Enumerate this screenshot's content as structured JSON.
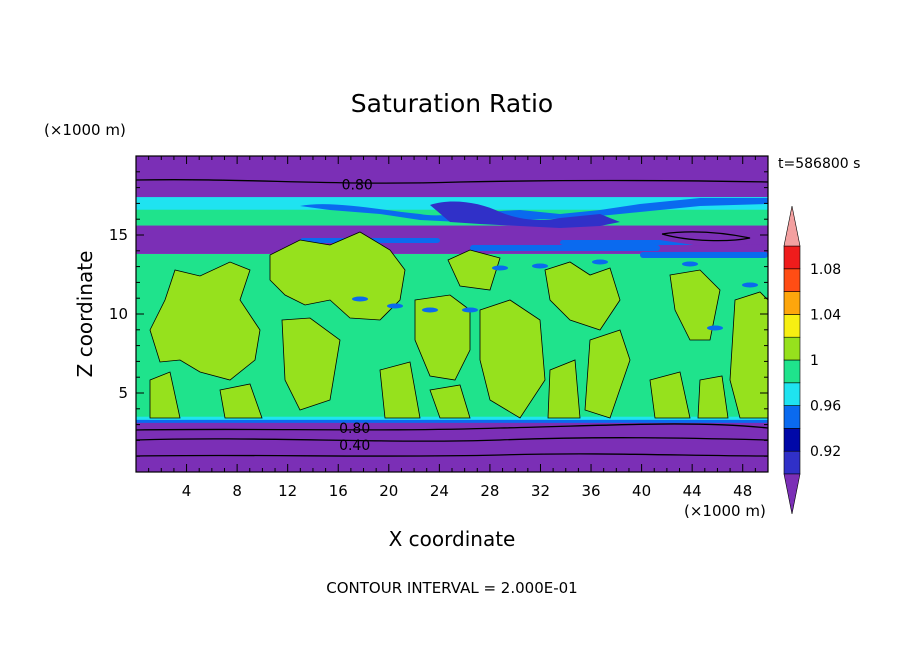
{
  "chart_data": {
    "type": "heatmap",
    "title": "Saturation Ratio",
    "xlabel": "X coordinate",
    "ylabel": "Z coordinate",
    "x_unit": "(×1000 m)",
    "y_unit": "(×1000 m)",
    "time_label": "t=586800 s",
    "footer": "CONTOUR INTERVAL = 2.000E-01",
    "xlim": [
      0,
      50
    ],
    "ylim": [
      0,
      20
    ],
    "x_ticks": [
      4,
      8,
      12,
      16,
      20,
      24,
      28,
      32,
      36,
      40,
      44,
      48
    ],
    "y_ticks": [
      5,
      10,
      15
    ],
    "colorbar": {
      "levels": [
        0.92,
        0.94,
        0.96,
        0.98,
        1.0,
        1.02,
        1.04,
        1.06,
        1.08
      ],
      "tick_labels": [
        {
          "level": 0.92,
          "text": "0.92"
        },
        {
          "level": 0.96,
          "text": "0.96"
        },
        {
          "level": 1.0,
          "text": "1"
        },
        {
          "level": 1.04,
          "text": "1.04"
        },
        {
          "level": 1.08,
          "text": "1.08"
        }
      ],
      "colors": [
        "#7b2fb6",
        "#3030c8",
        "#0008a8",
        "#0a6aef",
        "#1fe3f0",
        "#1fe38c",
        "#96e11d",
        "#f7ef12",
        "#fda60c",
        "#ff4d14",
        "#ef1c1c",
        "#f3a0a0"
      ]
    },
    "contour_labels": [
      {
        "text": "0.80",
        "x": 17.5,
        "z": 18.2
      },
      {
        "text": "0.80",
        "x": 17.3,
        "z": 2.8
      },
      {
        "text": "0.40",
        "x": 17.3,
        "z": 1.7
      }
    ],
    "bands": [
      {
        "z0": 0.0,
        "z1": 3.2,
        "color": "#7b2fb6",
        "description": "dry lower layer"
      },
      {
        "z0": 3.2,
        "z1": 3.4,
        "color": "#1fe3f0"
      },
      {
        "z0": 3.4,
        "z1": 13.8,
        "color": "#1fe38c",
        "patches_color": "#96e11d"
      },
      {
        "z0": 13.8,
        "z1": 15.6,
        "color": "#7b2fb6"
      },
      {
        "z0": 15.6,
        "z1": 17.2,
        "color": "#1fe38c"
      },
      {
        "z0": 17.2,
        "z1": 20.0,
        "color": "#7b2fb6"
      }
    ]
  }
}
